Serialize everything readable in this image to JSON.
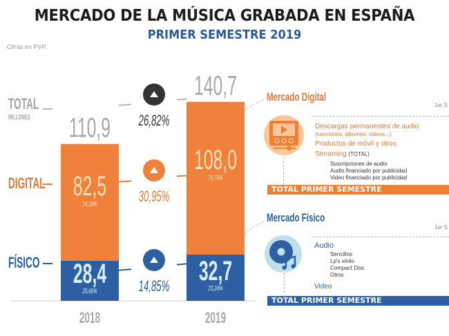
{
  "header": {
    "title": "MERCADO DE LA MÚSICA GRABADA EN ESPAÑA",
    "subtitle": "PRIMER SEMESTRE 2019",
    "note": "Cifras en PVP."
  },
  "colors": {
    "digital": "#f0813a",
    "fisico": "#2d5fa2",
    "total_text": "#a9a9ab",
    "dark_circle": "#333333",
    "digital_light": "#fbc796",
    "fisico_light": "#bfe0ea"
  },
  "row_labels": {
    "total": "TOTAL",
    "total_sub": "MILLONES",
    "digital": "DIGITAL",
    "fisico": "FÍSICO"
  },
  "chart_data": {
    "type": "bar",
    "stacked": true,
    "title": "Mercado de la música grabada en España — Primer semestre 2019",
    "units": "millones de euros (PVP)",
    "categories": [
      "2018",
      "2019"
    ],
    "series": [
      {
        "name": "Físico",
        "values": [
          28.4,
          32.7
        ],
        "value_labels": [
          "28,4",
          "32,7"
        ],
        "share_labels": [
          "25,66%",
          "23,24%"
        ]
      },
      {
        "name": "Digital",
        "values": [
          82.5,
          108.0
        ],
        "value_labels": [
          "82,5",
          "108,0"
        ],
        "share_labels": [
          "74,34%",
          "76,76%"
        ]
      }
    ],
    "totals": [
      110.9,
      140.7
    ],
    "total_labels": [
      "110,9",
      "140,7"
    ],
    "growth": [
      {
        "row": "total",
        "label": "26,82%",
        "direction": "up"
      },
      {
        "row": "digital",
        "label": "30,95%",
        "direction": "up"
      },
      {
        "row": "fisico",
        "label": "14,85%",
        "direction": "up"
      }
    ],
    "ylim": [
      0,
      150
    ],
    "grid": false,
    "xlabel": "",
    "ylabel": ""
  },
  "panel_digital": {
    "title": "Mercado Digital",
    "period": "1er S",
    "items": [
      {
        "label": "Descargas permanentes de audio",
        "sub": "(canciones, álbumes, videos...)"
      },
      {
        "label": "Productos de móvil y otros"
      },
      {
        "label": "Streaming",
        "suffix": "(TOTAL)"
      }
    ],
    "streaming_sub": [
      "Suscripciones de audio",
      "Audio financiado por publicidad",
      "Video financiado por publicidad"
    ],
    "total_label": "TOTAL PRIMER SEMESTRE"
  },
  "panel_fisico": {
    "title": "Mercado Físico",
    "period": "1er S",
    "audio_label": "Audio",
    "audio_sub": [
      "Sencillos",
      "Lp's vinilo",
      "Compact Disc",
      "Otros"
    ],
    "video_label": "Video",
    "total_label": "TOTAL PRIMER SEMESTRE"
  }
}
